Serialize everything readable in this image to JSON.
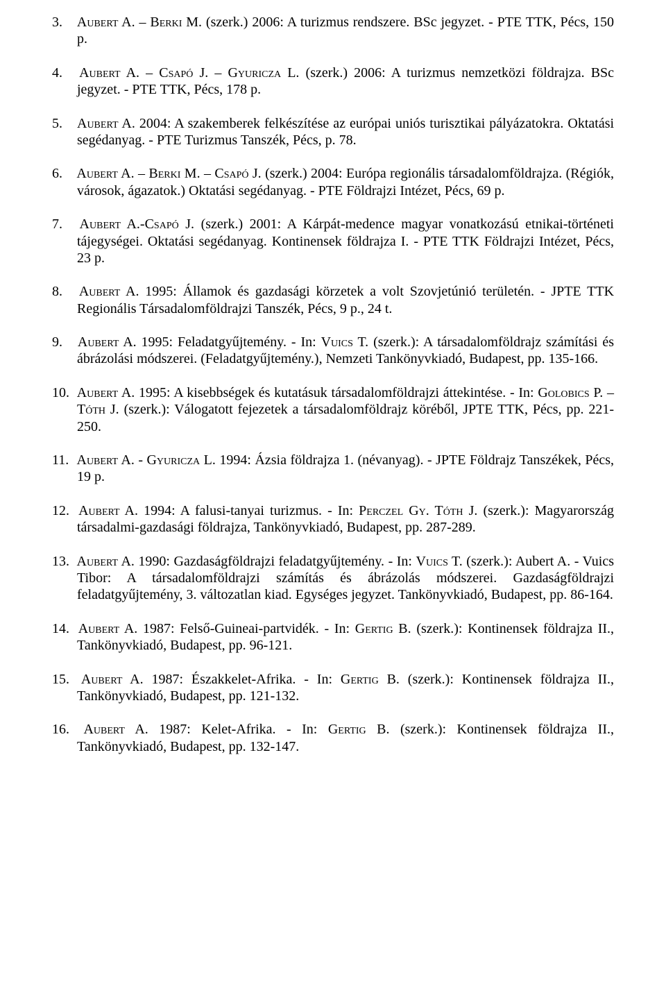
{
  "typography": {
    "font_family": "Times New Roman",
    "font_size_pt": 15,
    "text_color": "#000000",
    "background_color": "#ffffff",
    "small_caps_for_names": true,
    "alignment": "justify",
    "number_style": "decimal-dot"
  },
  "start_number": 3,
  "refs": [
    {
      "n": 3,
      "authors": "Aubert A. – Berki M.",
      "role": "(szerk.)",
      "year": "2006",
      "title": "A turizmus rendszere. BSc jegyzet.",
      "pub": "- PTE TTK, Pécs, 150 p."
    },
    {
      "n": 4,
      "authors": "Aubert A. – Csapó J. – Gyuricza L.",
      "role": "(szerk.)",
      "year": "2006",
      "title": "A turizmus nemzetközi földrajza. BSc jegyzet.",
      "pub": "- PTE TTK, Pécs, 178 p."
    },
    {
      "n": 5,
      "authors": "Aubert A.",
      "role": "",
      "year": "2004",
      "title": "A szakemberek felkészítése az európai uniós turisztikai pályázatokra. Oktatási segédanyag.",
      "pub": "- PTE Turizmus Tanszék, Pécs, p. 78."
    },
    {
      "n": 6,
      "authors": "Aubert A. – Berki M. – Csapó J.",
      "role": "(szerk.)",
      "year": "2004",
      "title": "Európa regionális társadalomföldrajza. (Régiók, városok, ágazatok.) Oktatási segédanyag.",
      "pub": "- PTE Földrajzi Intézet, Pécs, 69 p."
    },
    {
      "n": 7,
      "authors": "Aubert A.-Csapó J.",
      "role": "(szerk.)",
      "year": "2001",
      "title": "A Kárpát-medence magyar vonatkozású etnikai-történeti tájegységei. Oktatási segédanyag. Kontinensek földrajza I.",
      "pub": "- PTE TTK Földrajzi Intézet, Pécs, 23 p."
    },
    {
      "n": 8,
      "authors": "Aubert A.",
      "role": "",
      "year": "1995",
      "title": "Államok és gazdasági körzetek a volt Szovjetúnió területén.",
      "pub": "- JPTE TTK Regionális Társadalomföldrajzi Tanszék, Pécs, 9 p., 24 t."
    },
    {
      "n": 9,
      "authors": "Aubert A.",
      "role": "",
      "year": "1995",
      "title": "Feladatgyűjtemény.",
      "in_editors": "Vuics T.",
      "in_role": "(szerk.)",
      "in_title": "A társadalomföldrajz számítási és ábrázolási módszerei. (Feladatgyűjtemény.)",
      "pub": ", Nemzeti Tankönyvkiadó, Budapest, pp. 135-166."
    },
    {
      "n": 10,
      "authors": "Aubert A.",
      "role": "",
      "year": "1995",
      "title": "A kisebbségek és kutatásuk társadalomföldrajzi áttekintése.",
      "in_editors": "Golobics P. – Tóth J.",
      "in_role": "(szerk.)",
      "in_title": "Válogatott fejezetek a társadalomföldrajz köréből",
      "pub": ", JPTE TTK, Pécs, pp. 221-250."
    },
    {
      "n": 11,
      "authors": "Aubert A. - Gyuricza L.",
      "role": "",
      "year": "1994",
      "title": "Ázsia földrajza 1. (névanyag).",
      "pub": "- JPTE Földrajz Tanszékek, Pécs, 19 p."
    },
    {
      "n": 12,
      "authors": "Aubert A.",
      "role": "",
      "year": "1994",
      "title": "A falusi-tanyai turizmus.",
      "in_editors": "Perczel Gy. Tóth J.",
      "in_role": "(szerk.)",
      "in_title": "Magyarország társadalmi-gazdasági földrajza",
      "pub": ", Tankönyvkiadó, Budapest, pp. 287-289."
    },
    {
      "n": 13,
      "authors": "Aubert A.",
      "role": "",
      "year": "1990",
      "title": "Gazdaságföldrajzi feladatgyűjtemény.",
      "in_editors": "Vuics T.",
      "in_role": "(szerk.)",
      "in_title": "Aubert A. - Vuics Tibor: A társadalomföldrajzi számítás és ábrázolás módszerei. Gazdaságföldrajzi feladatgyűjtemény, 3. változatlan kiad. Egységes jegyzet.",
      "pub": " Tankönyvkiadó, Budapest, pp. 86-164."
    },
    {
      "n": 14,
      "authors": "Aubert A.",
      "role": "",
      "year": "1987",
      "title": "Felső-Guineai-partvidék.",
      "in_editors": "Gertig B.",
      "in_role": "(szerk.)",
      "in_title": "Kontinensek földrajza II.",
      "pub": ", Tankönyvkiadó, Budapest, pp. 96-121."
    },
    {
      "n": 15,
      "authors": "Aubert A.",
      "role": "",
      "year": "1987",
      "title": "Északkelet-Afrika.",
      "in_editors": "Gertig B.",
      "in_role": "(szerk.)",
      "in_title": "Kontinensek földrajza II.",
      "pub": ", Tankönyvkiadó, Budapest, pp. 121-132."
    },
    {
      "n": 16,
      "authors": "Aubert A.",
      "role": "",
      "year": "1987",
      "title": "Kelet-Afrika.",
      "in_editors": "Gertig B.",
      "in_role": "(szerk.)",
      "in_title": "Kontinensek földrajza II.",
      "pub": ", Tankönyvkiadó, Budapest, pp. 132-147."
    }
  ]
}
